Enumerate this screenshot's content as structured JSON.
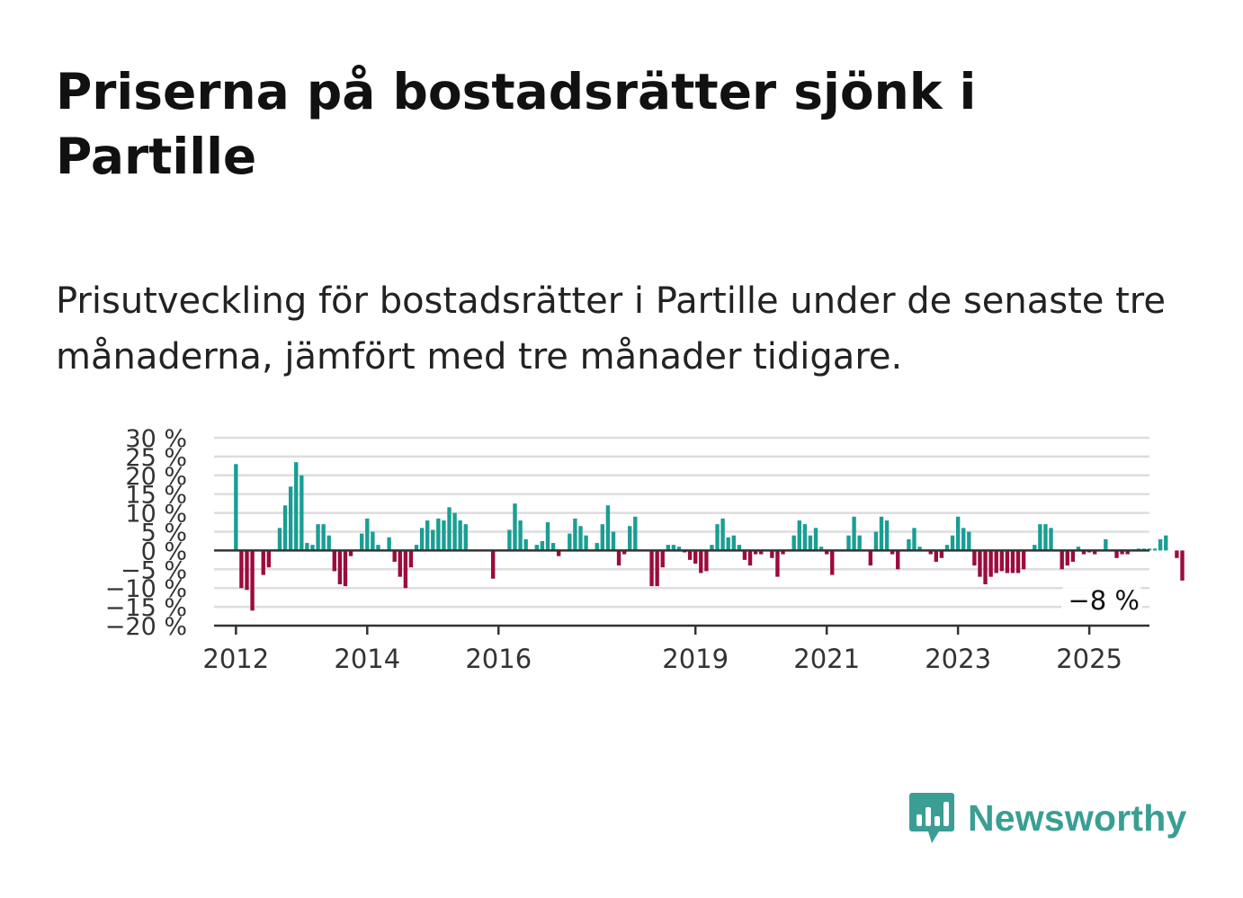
{
  "header": {
    "title": "Priserna på bostadsrätter sjönk i Partille",
    "subtitle": "Prisutveckling för bostadsrätter i Partille under de senaste tre månaderna, jämfört med tre månader tidigare."
  },
  "brand": {
    "name": "Newsworthy",
    "logo_icon": "bar-chart-speech-bubble-icon",
    "color": "#3a9e94"
  },
  "chart_data": {
    "type": "bar",
    "title": "",
    "xlabel": "",
    "ylabel": "",
    "unit": "%",
    "ylim": [
      -20,
      30
    ],
    "xlim": [
      "2011-09",
      "2025-12"
    ],
    "y_ticks": [
      30,
      25,
      20,
      15,
      10,
      5,
      0,
      -5,
      -10,
      -15,
      -20
    ],
    "y_tick_labels": [
      "30 %",
      "25 %",
      "20 %",
      "15 %",
      "10 %",
      "5 %",
      "0 %",
      "−5 %",
      "−10 %",
      "−15 %",
      "−20 %"
    ],
    "x_ticks": [
      "2012-01",
      "2014-01",
      "2016-01",
      "2019-01",
      "2021-01",
      "2023-01",
      "2025-01"
    ],
    "x_tick_labels": [
      "2012",
      "2014",
      "2016",
      "2019",
      "2021",
      "2023",
      "2025"
    ],
    "grid": true,
    "colors": {
      "positive": "#1a9e93",
      "negative": "#9b0b3d",
      "grid": "#dddddd",
      "axis": "#333333"
    },
    "end_label": "−8 %",
    "series": [
      {
        "start": "2012-01",
        "values": [
          23,
          -10,
          -10.5,
          -16,
          0,
          -6.5,
          -4.5,
          0,
          6,
          12,
          17,
          23.5,
          20,
          2,
          1.5,
          7,
          7,
          4,
          -5.5,
          -9,
          -9.5,
          -1.5,
          0,
          4.5,
          8.5,
          5,
          1.5,
          0,
          3.5,
          -3,
          -7,
          -10,
          -4.5,
          1.5,
          6,
          8,
          5.5,
          8.5,
          8,
          11.5,
          10,
          8,
          7,
          0,
          0,
          0,
          0,
          -7.5,
          0,
          0,
          5.5,
          12.5,
          8,
          3,
          0,
          1.5,
          2.5,
          7.5,
          2,
          -1.5,
          0,
          4.5,
          8.5,
          6.5,
          4,
          0,
          2,
          7,
          12,
          5,
          -4,
          -1,
          6.5,
          9,
          0,
          0,
          -9.5,
          -9.5,
          -4.5,
          1.5,
          1.5,
          1,
          -0.5,
          -2.5,
          -3.5,
          -6,
          -5.5,
          1.5,
          7,
          8.5,
          3.5,
          4,
          1.5,
          -2.5,
          -4,
          -1,
          -1,
          0,
          -2,
          -7,
          -1,
          0,
          4,
          8,
          7,
          4,
          6,
          1,
          -1,
          -6.5,
          0,
          0,
          4,
          9,
          4,
          0,
          -4,
          5,
          9,
          8,
          -1,
          -5,
          0,
          3,
          6,
          1,
          0,
          -1,
          -3,
          -2,
          1.5,
          4,
          9,
          6,
          5,
          -4,
          -7,
          -9,
          -7,
          -6,
          -5.5,
          -6,
          -6,
          -6,
          -5,
          0,
          1.5,
          7,
          7,
          6,
          0,
          -5,
          -4,
          -3,
          1,
          -1,
          -0.5,
          -1,
          0,
          3,
          0,
          -2,
          -1,
          -1,
          0,
          0.5,
          0.5,
          0.5,
          0.5,
          3,
          4,
          0,
          -2,
          -8
        ]
      }
    ]
  }
}
